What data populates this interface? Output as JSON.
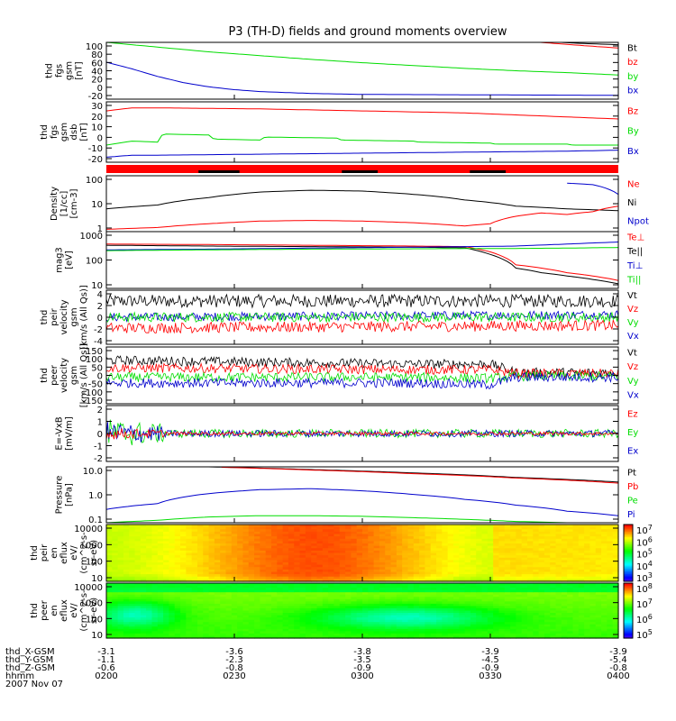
{
  "title": "P3 (TH-D) fields and ground moments overview",
  "colors": {
    "black": "#000000",
    "red": "#ff0000",
    "green": "#00dd00",
    "blue": "#0000cc"
  },
  "chart_data": [
    {
      "type": "line",
      "ylabel": [
        "thd",
        "fgs",
        "gsm",
        "[nT]"
      ],
      "yticks": [
        "100",
        "80",
        "60",
        "40",
        "20",
        "0",
        "-20"
      ],
      "ylim": [
        -20,
        100
      ],
      "legend": [
        {
          "name": "Bt",
          "color": "#000000"
        },
        {
          "name": "bz",
          "color": "#ff0000"
        },
        {
          "name": "by",
          "color": "#00dd00"
        },
        {
          "name": "bx",
          "color": "#0000cc"
        }
      ],
      "series": [
        {
          "name": "bt",
          "color": "#000000",
          "x": [
            0.8,
            0.86,
            0.92,
            1.0
          ],
          "y": [
            104,
            102,
            98,
            95
          ]
        },
        {
          "name": "bz",
          "color": "#ff0000",
          "x": [
            0.8,
            0.86,
            0.92,
            1.0
          ],
          "y": [
            104,
            99,
            94,
            88
          ]
        },
        {
          "name": "by",
          "color": "#00dd00",
          "x": [
            0,
            0.1,
            0.2,
            0.3,
            0.4,
            0.5,
            0.6,
            0.7,
            0.8,
            0.9,
            1.0
          ],
          "y": [
            100,
            90,
            80,
            72,
            64,
            57,
            51,
            45,
            40,
            36,
            31
          ]
        },
        {
          "name": "bx",
          "color": "#0000cc",
          "x": [
            0,
            0.05,
            0.1,
            0.15,
            0.2,
            0.25,
            0.3,
            0.4,
            0.5,
            1.0
          ],
          "y": [
            58,
            44,
            28,
            15,
            6,
            0,
            -4,
            -8,
            -10,
            -12
          ]
        }
      ]
    },
    {
      "type": "line",
      "ylabel": [
        "thd",
        "fgs",
        "gsm",
        "dsb",
        "[nT]"
      ],
      "yticks": [
        "30",
        "20",
        "10",
        "0",
        "-10",
        "-20"
      ],
      "ylim": [
        -25,
        35
      ],
      "legend": [
        {
          "name": "Bz",
          "color": "#ff0000"
        },
        {
          "name": "By",
          "color": "#00dd00"
        },
        {
          "name": "Bx",
          "color": "#0000cc"
        }
      ],
      "series": [
        {
          "name": "Bz",
          "color": "#ff0000",
          "x": [
            0,
            0.05,
            0.1,
            0.2,
            0.3,
            0.4,
            0.5,
            0.6,
            0.7,
            0.8,
            0.9,
            1.0
          ],
          "y": [
            26,
            29,
            29,
            28.5,
            28,
            27,
            26,
            25,
            24,
            22,
            20,
            18
          ]
        },
        {
          "name": "By",
          "color": "#00dd00",
          "x": [
            0,
            0.05,
            0.1,
            0.11,
            0.2,
            0.21,
            0.3,
            0.31,
            0.45,
            0.46,
            0.6,
            0.61,
            0.75,
            0.76,
            0.9,
            0.91,
            1.0
          ],
          "y": [
            -8,
            -4,
            -5,
            3,
            2,
            -2,
            -3,
            0,
            -1,
            -3,
            -4,
            -5,
            -6,
            -7,
            -7,
            -8,
            -8
          ]
        },
        {
          "name": "Bx",
          "color": "#0000cc",
          "x": [
            0,
            0.05,
            0.1,
            0.3,
            0.5,
            0.7,
            0.9,
            1.0
          ],
          "y": [
            -20,
            -18,
            -18,
            -17,
            -16,
            -15,
            -14,
            -13
          ]
        }
      ]
    },
    {
      "type": "line",
      "ylabel": [
        "Density",
        "[1/cc]",
        "[cm-3]"
      ],
      "yticks": [
        "100",
        "10",
        "1"
      ],
      "ylim": [
        0.3,
        300
      ],
      "log": true,
      "legend": [
        {
          "name": "Ne",
          "color": "#ff0000"
        },
        {
          "name": "Ni",
          "color": "#000000"
        },
        {
          "name": "Npot",
          "color": "#0000cc"
        }
      ],
      "series": [
        {
          "name": "Ni",
          "color": "#000000",
          "x": [
            0,
            0.1,
            0.2,
            0.3,
            0.4,
            0.5,
            0.6,
            0.7,
            0.8,
            0.9,
            1.0
          ],
          "y": [
            5,
            8,
            20,
            40,
            50,
            45,
            30,
            15,
            7,
            5,
            4
          ]
        },
        {
          "name": "Ne",
          "color": "#ff0000",
          "x": [
            0,
            0.1,
            0.2,
            0.3,
            0.4,
            0.5,
            0.6,
            0.7,
            0.75,
            0.8,
            0.85,
            0.9,
            0.95,
            1.0
          ],
          "y": [
            0.4,
            0.5,
            0.8,
            1.1,
            1.2,
            1.1,
            0.9,
            0.6,
            0.8,
            2,
            3,
            2.5,
            3.5,
            7
          ]
        },
        {
          "name": "Npot",
          "color": "#0000cc",
          "x": [
            0.9,
            0.95,
            1.0
          ],
          "y": [
            120,
            100,
            30
          ]
        }
      ]
    },
    {
      "type": "line",
      "ylabel": [
        "mag3",
        "[eV]"
      ],
      "yticks": [
        "1000",
        "100",
        "10"
      ],
      "ylim": [
        10,
        1500
      ],
      "log": true,
      "legend": [
        {
          "name": "Te⊥",
          "color": "#ff0000"
        },
        {
          "name": "Te||",
          "color": "#000000"
        },
        {
          "name": "Ti⊥",
          "color": "#0000cc"
        },
        {
          "name": "Ti||",
          "color": "#00dd00"
        }
      ],
      "series": [
        {
          "name": "Te_perp",
          "color": "#ff0000",
          "x": [
            0,
            0.2,
            0.4,
            0.6,
            0.7,
            0.75,
            0.8,
            0.85,
            0.9,
            0.95,
            1.0
          ],
          "y": [
            500,
            480,
            450,
            420,
            400,
            250,
            80,
            60,
            40,
            30,
            20
          ]
        },
        {
          "name": "Te_par",
          "color": "#000000",
          "x": [
            0,
            0.2,
            0.4,
            0.6,
            0.7,
            0.75,
            0.8,
            0.85,
            0.9,
            0.95,
            1.0
          ],
          "y": [
            450,
            420,
            400,
            380,
            360,
            200,
            60,
            40,
            30,
            22,
            15
          ]
        },
        {
          "name": "Ti_perp",
          "color": "#0000cc",
          "x": [
            0,
            0.2,
            0.4,
            0.6,
            0.8,
            0.9,
            1.0
          ],
          "y": [
            300,
            320,
            350,
            380,
            420,
            500,
            600
          ]
        },
        {
          "name": "Ti_par",
          "color": "#00dd00",
          "x": [
            0,
            0.2,
            0.4,
            0.6,
            0.8,
            0.9,
            1.0
          ],
          "y": [
            280,
            300,
            320,
            330,
            340,
            350,
            370
          ]
        }
      ]
    },
    {
      "type": "line",
      "ylabel": [
        "thd",
        "peir",
        "velocity",
        "gsm",
        "[km/s (All Qs)]"
      ],
      "yticks": [
        "4",
        "2",
        "0",
        "-2",
        "-4"
      ],
      "ylim": [
        -5,
        5
      ],
      "noisy": true,
      "legend": [
        {
          "name": "Vt",
          "color": "#000000"
        },
        {
          "name": "Vz",
          "color": "#ff0000"
        },
        {
          "name": "Vy",
          "color": "#00dd00"
        },
        {
          "name": "Vx",
          "color": "#0000cc"
        }
      ],
      "series": [
        {
          "name": "Vt",
          "color": "#000000",
          "x": [
            0,
            1
          ],
          "y": [
            3,
            3
          ],
          "noise": 1.2
        },
        {
          "name": "Vx",
          "color": "#0000cc",
          "x": [
            0,
            1
          ],
          "y": [
            0,
            0.5
          ],
          "noise": 0.8
        },
        {
          "name": "Vy",
          "color": "#00dd00",
          "x": [
            0,
            1
          ],
          "y": [
            0,
            0
          ],
          "noise": 0.9
        },
        {
          "name": "Vz",
          "color": "#ff0000",
          "x": [
            0,
            1
          ],
          "y": [
            -2,
            -1.5
          ],
          "noise": 1.0
        }
      ]
    },
    {
      "type": "line",
      "ylabel": [
        "thd",
        "peer",
        "velocity",
        "gsm",
        "[km/s (All Qs)]"
      ],
      "yticks": [
        "150",
        "100",
        "50",
        "0",
        "-50",
        "-100",
        "-150"
      ],
      "ylim": [
        -150,
        150
      ],
      "noisy": true,
      "legend": [
        {
          "name": "Vt",
          "color": "#000000"
        },
        {
          "name": "Vz",
          "color": "#ff0000"
        },
        {
          "name": "Vy",
          "color": "#00dd00"
        },
        {
          "name": "Vx",
          "color": "#0000cc"
        }
      ],
      "series": [
        {
          "name": "Vt",
          "color": "#000000",
          "x": [
            0,
            0.6,
            0.75,
            0.8,
            1.0
          ],
          "y": [
            80,
            60,
            60,
            15,
            15
          ],
          "noise": 25
        },
        {
          "name": "Vz",
          "color": "#ff0000",
          "x": [
            0,
            0.6,
            0.75,
            0.8,
            1.0
          ],
          "y": [
            40,
            30,
            30,
            10,
            10
          ],
          "noise": 25
        },
        {
          "name": "Vy",
          "color": "#00dd00",
          "x": [
            0,
            0.6,
            0.75,
            0.8,
            1.0
          ],
          "y": [
            -10,
            -10,
            -15,
            -5,
            -5
          ],
          "noise": 25
        },
        {
          "name": "Vx",
          "color": "#0000cc",
          "x": [
            0,
            0.6,
            0.75,
            0.8,
            1.0
          ],
          "y": [
            -40,
            -40,
            -50,
            -10,
            -10
          ],
          "noise": 25
        }
      ]
    },
    {
      "type": "line",
      "ylabel": [
        "E=-VxB",
        "[mV/m]"
      ],
      "yticks": [
        "2",
        "1",
        "0",
        "-1",
        "-2"
      ],
      "ylim": [
        -2,
        2
      ],
      "noisy": true,
      "legend": [
        {
          "name": "Ez",
          "color": "#ff0000"
        },
        {
          "name": "Ey",
          "color": "#00dd00"
        },
        {
          "name": "Ex",
          "color": "#0000cc"
        }
      ],
      "series": [
        {
          "name": "Ey",
          "color": "#00dd00",
          "x": [
            0,
            1
          ],
          "y": [
            0,
            0
          ],
          "noise": 0.5,
          "decay": true
        },
        {
          "name": "Ex",
          "color": "#0000cc",
          "x": [
            0,
            1
          ],
          "y": [
            0,
            0
          ],
          "noise": 0.4,
          "decay": true
        },
        {
          "name": "Ez",
          "color": "#ff0000",
          "x": [
            0,
            1
          ],
          "y": [
            0,
            0
          ],
          "noise": 0.2,
          "decay": true
        }
      ]
    },
    {
      "type": "line",
      "ylabel": [
        "Pressure",
        "[nPa]"
      ],
      "yticks": [
        "10.0",
        "1.0",
        "0.1"
      ],
      "ylim": [
        0.03,
        25
      ],
      "log": true,
      "legend": [
        {
          "name": "Pt",
          "color": "#000000"
        },
        {
          "name": "Pb",
          "color": "#ff0000"
        },
        {
          "name": "Pe",
          "color": "#00dd00"
        },
        {
          "name": "Pi",
          "color": "#0000cc"
        }
      ],
      "series": [
        {
          "name": "Pt",
          "color": "#000000",
          "x": [
            0.2,
            0.4,
            0.6,
            0.8,
            1.0
          ],
          "y": [
            25,
            18,
            12,
            7,
            4
          ]
        },
        {
          "name": "Pb",
          "color": "#ff0000",
          "x": [
            0.22,
            0.4,
            0.6,
            0.8,
            1.0
          ],
          "y": [
            24,
            17,
            11,
            6.5,
            3.5
          ]
        },
        {
          "name": "Pi",
          "color": "#0000cc",
          "x": [
            0,
            0.1,
            0.2,
            0.3,
            0.4,
            0.5,
            0.6,
            0.7,
            0.8,
            0.9,
            1.0
          ],
          "y": [
            0.15,
            0.3,
            1,
            1.6,
            1.8,
            1.4,
            0.9,
            0.5,
            0.25,
            0.12,
            0.07
          ]
        },
        {
          "name": "Pe",
          "color": "#00dd00",
          "x": [
            0,
            0.1,
            0.2,
            0.3,
            0.4,
            0.5,
            0.6,
            0.7,
            0.8,
            0.9,
            1.0
          ],
          "y": [
            0.03,
            0.04,
            0.06,
            0.07,
            0.07,
            0.065,
            0.055,
            0.045,
            0.035,
            0.03,
            0.03
          ]
        }
      ]
    },
    {
      "type": "heatmap",
      "ylabel": [
        "thd",
        "peir",
        "en",
        "eflux",
        "eV/",
        "(cm^2-s-",
        "sr-eV)"
      ],
      "yticks": [
        "10000",
        "1000",
        "100",
        "10"
      ],
      "colorbar_ticks": [
        "10^7",
        "10^6",
        "10^5",
        "10^4",
        "10^3"
      ],
      "colormap": "rainbow",
      "description_values": {
        "low_edge_level": 0.7,
        "center_level": 0.93,
        "late_level": 0.8
      }
    },
    {
      "type": "heatmap",
      "ylabel": [
        "thd",
        "peer",
        "en",
        "eflux",
        "eV/",
        "(cm^2-s-",
        "sr-eV)"
      ],
      "yticks": [
        "10000",
        "1000",
        "100",
        "10"
      ],
      "colorbar_ticks": [
        "10^8",
        "10^7",
        "10^6",
        "10^5"
      ],
      "colormap": "rainbow",
      "description_values": {
        "base_level": 0.62,
        "blob_level": 0.38
      }
    }
  ],
  "status_bar_ticks": [
    0.18,
    0.26,
    0.46,
    0.53,
    0.71,
    0.78
  ],
  "xaxis": {
    "rows": [
      {
        "label": "thd_X-GSM",
        "values": [
          "-3.1",
          "-3.6",
          "-3.8",
          "-3.9",
          "-3.9"
        ]
      },
      {
        "label": "thd_Y-GSM",
        "values": [
          "-1.1",
          "-2.3",
          "-3.5",
          "-4.5",
          "-5.4"
        ]
      },
      {
        "label": "thd_Z-GSM",
        "values": [
          "-0.6",
          "-0.8",
          "-0.9",
          "-0.9",
          "-0.8"
        ]
      },
      {
        "label": "hhmm",
        "values": [
          "0200",
          "0230",
          "0300",
          "0330",
          "0400"
        ]
      }
    ],
    "date": "2007 Nov 07"
  }
}
